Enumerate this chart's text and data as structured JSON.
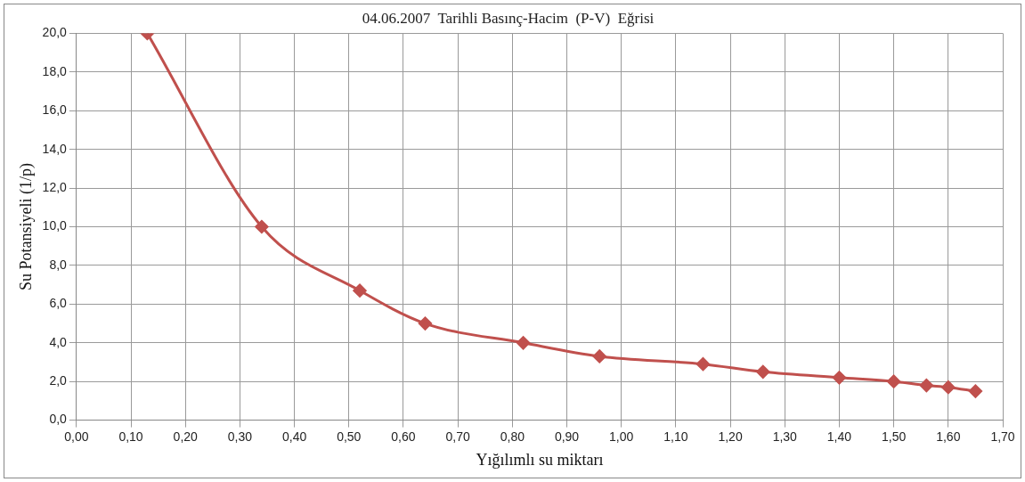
{
  "chart_data": {
    "type": "line",
    "title": "04.06.2007  Tarihli Basınç-Hacim  (P-V)  Eğrisi",
    "xlabel": "Yığılımlı su miktarı",
    "ylabel": "Su Potansiyeli (1/p)",
    "x": [
      0.13,
      0.34,
      0.52,
      0.64,
      0.82,
      0.96,
      1.15,
      1.26,
      1.4,
      1.5,
      1.56,
      1.6,
      1.65
    ],
    "series": [
      {
        "color": "#c0504d",
        "values": [
          20.0,
          10.0,
          6.7,
          5.0,
          4.0,
          3.3,
          2.9,
          2.5,
          2.2,
          2.0,
          1.8,
          1.7,
          1.5
        ]
      }
    ],
    "xlim": [
      0,
      1.7
    ],
    "ylim": [
      0,
      20
    ],
    "xticks": [
      {
        "value": 0,
        "label": "0,00"
      },
      {
        "value": 0.1,
        "label": "0,10"
      },
      {
        "value": 0.2,
        "label": "0,20"
      },
      {
        "value": 0.3,
        "label": "0,30"
      },
      {
        "value": 0.4,
        "label": "0,40"
      },
      {
        "value": 0.5,
        "label": "0,50"
      },
      {
        "value": 0.6,
        "label": "0,60"
      },
      {
        "value": 0.7,
        "label": "0,70"
      },
      {
        "value": 0.8,
        "label": "0,80"
      },
      {
        "value": 0.9,
        "label": "0,90"
      },
      {
        "value": 1.0,
        "label": "1,00"
      },
      {
        "value": 1.1,
        "label": "1,10"
      },
      {
        "value": 1.2,
        "label": "1,20"
      },
      {
        "value": 1.3,
        "label": "1,30"
      },
      {
        "value": 1.4,
        "label": "1,40"
      },
      {
        "value": 1.5,
        "label": "1,50"
      },
      {
        "value": 1.6,
        "label": "1,60"
      },
      {
        "value": 1.7,
        "label": "1,70"
      }
    ],
    "yticks": [
      {
        "value": 0,
        "label": "0,0"
      },
      {
        "value": 2,
        "label": "2,0"
      },
      {
        "value": 4,
        "label": "4,0"
      },
      {
        "value": 6,
        "label": "6,0"
      },
      {
        "value": 8,
        "label": "8,0"
      },
      {
        "value": 10,
        "label": "10,0"
      },
      {
        "value": 12,
        "label": "12,0"
      },
      {
        "value": 14,
        "label": "14,0"
      },
      {
        "value": 16,
        "label": "16,0"
      },
      {
        "value": 18,
        "label": "18,0"
      },
      {
        "value": 20,
        "label": "20,0"
      }
    ],
    "grid": true,
    "legend": false,
    "marker": "diamond",
    "line_style": "solid"
  }
}
